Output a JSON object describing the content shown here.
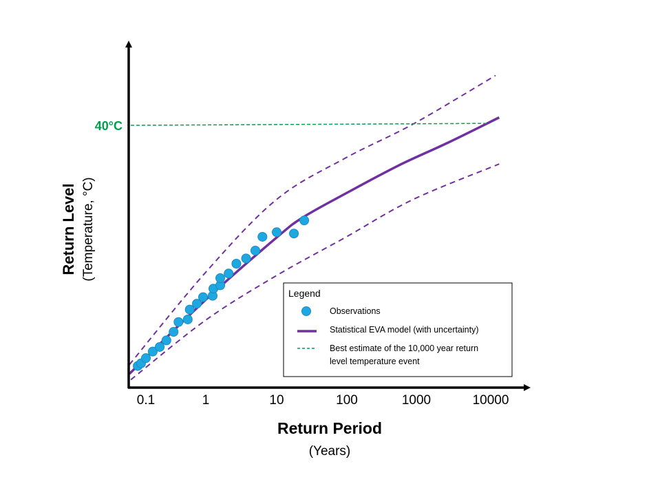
{
  "chart_data": {
    "type": "line",
    "title": "",
    "xlabel": "Return Period",
    "xlabel_sub": "(Years)",
    "ylabel": "Return Level",
    "ylabel_sub": "(Temperature, °C)",
    "x_scale": "log",
    "x_ticks": [
      {
        "value": 0.1,
        "label": "0.1"
      },
      {
        "value": 1,
        "label": "1"
      },
      {
        "value": 10,
        "label": "10"
      },
      {
        "value": 100,
        "label": "100"
      },
      {
        "value": 1000,
        "label": "1000"
      },
      {
        "value": 10000,
        "label": "10000"
      }
    ],
    "y_ticks": [
      {
        "value": 40,
        "label": "40°C"
      }
    ],
    "grid": false,
    "legend_placement": "bottom-right",
    "legend": {
      "title": "Legend",
      "items": [
        {
          "label": "Observations"
        },
        {
          "label": "Statistical EVA model  (with uncertainty)"
        },
        {
          "label": "Best estimate of the 10,000 year return",
          "label_line2": "level temperature  event"
        }
      ]
    },
    "colors": {
      "observations": "#1ea7e1",
      "model": "#7030a0",
      "best_estimate": "#00a050",
      "axes": "#000000"
    },
    "series": [
      {
        "name": "Observations",
        "kind": "scatter",
        "points": [
          [
            0.073,
            3.3
          ],
          [
            0.083,
            3.7
          ],
          [
            0.1,
            4.5
          ],
          [
            0.13,
            5.5
          ],
          [
            0.17,
            6.2
          ],
          [
            0.22,
            7.2
          ],
          [
            0.29,
            8.5
          ],
          [
            0.35,
            10.0
          ],
          [
            0.5,
            10.4
          ],
          [
            0.54,
            11.9
          ],
          [
            0.71,
            12.8
          ],
          [
            0.9,
            13.8
          ],
          [
            1.25,
            14.0
          ],
          [
            1.28,
            15.1
          ],
          [
            1.6,
            15.6
          ],
          [
            1.6,
            16.7
          ],
          [
            2.1,
            17.4
          ],
          [
            2.7,
            18.9
          ],
          [
            3.7,
            19.7
          ],
          [
            5.0,
            20.9
          ],
          [
            6.3,
            23.0
          ],
          [
            10,
            23.7
          ],
          [
            17.6,
            23.5
          ],
          [
            24.7,
            25.5
          ]
        ]
      },
      {
        "name": "Statistical EVA model  (with uncertainty)",
        "kind": "line",
        "points": [
          [
            0.053,
            2.1
          ],
          [
            1,
            13.4
          ],
          [
            10,
            22.9
          ],
          [
            24,
            26.0
          ],
          [
            100,
            29.7
          ],
          [
            560,
            33.9
          ],
          [
            2600,
            37.3
          ],
          [
            13000,
            41.2
          ]
        ]
      },
      {
        "kind": "upper-bound",
        "points": [
          [
            0.053,
            3.5
          ],
          [
            1,
            17.6
          ],
          [
            10,
            28.7
          ],
          [
            95,
            35.0
          ],
          [
            900,
            40.2
          ],
          [
            11600,
            47.6
          ]
        ]
      },
      {
        "kind": "lower-bound",
        "points": [
          [
            0.056,
            1.2
          ],
          [
            1,
            10.3
          ],
          [
            10,
            17.1
          ],
          [
            95,
            22.9
          ],
          [
            900,
            28.7
          ],
          [
            13000,
            34.1
          ]
        ]
      },
      {
        "name": "Best estimate of the 10,000 year return level temperature  event",
        "kind": "hline",
        "points": [
          [
            0.056,
            40
          ],
          [
            9000,
            40.3
          ]
        ]
      }
    ]
  }
}
